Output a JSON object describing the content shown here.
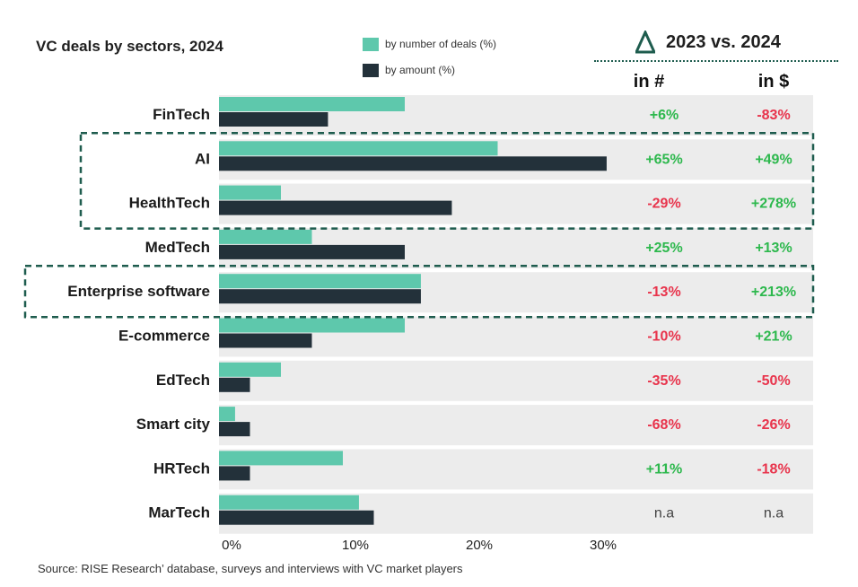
{
  "title": "VC deals by sectors, 2024",
  "legend": [
    {
      "label": "by number of deals (%)",
      "color": "#5ec8ac"
    },
    {
      "label": "by amount (%)",
      "color": "#23313a"
    }
  ],
  "delta_header": {
    "icon": "delta-triangle-icon",
    "label": "2023 vs. 2024",
    "col_count": "in #",
    "col_amount": "in $"
  },
  "colors": {
    "positive": "#2db84d",
    "negative": "#e8344c",
    "neutral": "#444444",
    "row_bg": "#ececec",
    "highlight_border": "#1e5c4e"
  },
  "chart_data": {
    "type": "bar",
    "orientation": "horizontal",
    "title": "VC deals by sectors, 2024",
    "categories": [
      "FinTech",
      "AI",
      "HealthTech",
      "MedTech",
      "Enterprise software",
      "E-commerce",
      "EdTech",
      "Smart city",
      "HRTech",
      "MarTech"
    ],
    "series": [
      {
        "name": "by number of deals (%)",
        "values": [
          15,
          22.5,
          5,
          7.5,
          16.3,
          15,
          5,
          1.3,
          10,
          11.3
        ]
      },
      {
        "name": "by amount (%)",
        "values": [
          8.8,
          31.3,
          18.8,
          15,
          16.3,
          7.5,
          2.5,
          2.5,
          2.5,
          12.5
        ]
      }
    ],
    "xlim": [
      0,
      30
    ],
    "x_ticks": [
      "0%",
      "10%",
      "20%",
      "30%"
    ],
    "change_2023_vs_2024": {
      "in_count": [
        "+6%",
        "+65%",
        "-29%",
        "+25%",
        "-13%",
        "-10%",
        "-35%",
        "-68%",
        "+11%",
        "n.a"
      ],
      "in_amount": [
        "-83%",
        "+49%",
        "+278%",
        "+13%",
        "+213%",
        "+21%",
        "-50%",
        "-26%",
        "-18%",
        "n.a"
      ]
    },
    "highlighted_groups": [
      [
        "AI",
        "HealthTech"
      ],
      [
        "Enterprise software"
      ]
    ],
    "grid": false
  },
  "source": "Source: RISE Research’ database, surveys and interviews with VC market players"
}
